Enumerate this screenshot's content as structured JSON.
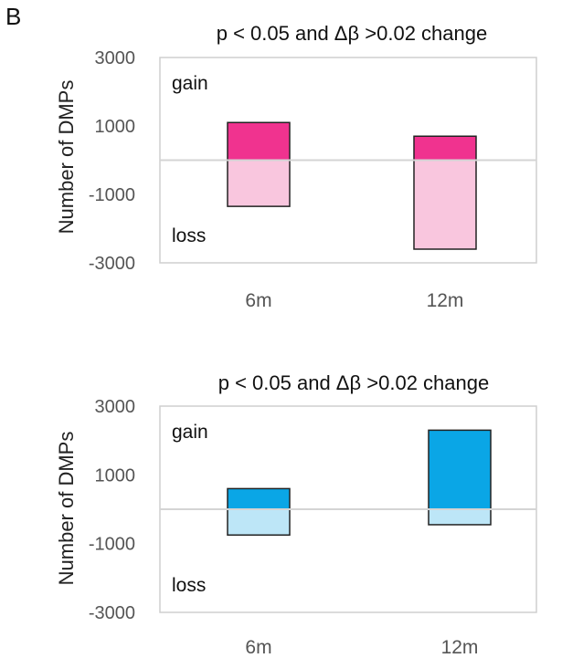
{
  "panel_letter": "B",
  "chart_data": [
    {
      "type": "bar",
      "title": "p < 0.05 and Δβ >0.02 change",
      "ylabel": "Number of  DMPs",
      "ylim": [
        -3000,
        3000
      ],
      "yticks": [
        "3000",
        "1000",
        "-1000",
        "-3000"
      ],
      "ytick_values": [
        3000,
        1000,
        -1000,
        -3000
      ],
      "categories": [
        "6m",
        "12m"
      ],
      "series": [
        {
          "name": "gain",
          "values": [
            1100,
            700
          ],
          "color": "#f0338f"
        },
        {
          "name": "loss",
          "values": [
            -1350,
            -2600
          ],
          "color": "#f9c6de"
        }
      ],
      "annotations": {
        "top": "gain",
        "bottom": "loss"
      },
      "zero_line": true
    },
    {
      "type": "bar",
      "title": "p < 0.05 and Δβ >0.02 change",
      "ylabel": "Number of  DMPs",
      "ylim": [
        -3000,
        3000
      ],
      "yticks": [
        "3000",
        "1000",
        "-1000",
        "-3000"
      ],
      "ytick_values": [
        3000,
        1000,
        -1000,
        -3000
      ],
      "categories": [
        "6m",
        "12m"
      ],
      "series": [
        {
          "name": "gain",
          "values": [
            600,
            2300
          ],
          "color": "#0aa6e6"
        },
        {
          "name": "loss",
          "values": [
            -750,
            -450
          ],
          "color": "#bde6f7"
        }
      ],
      "annotations": {
        "top": "gain",
        "bottom": "loss"
      },
      "zero_line": true
    }
  ]
}
